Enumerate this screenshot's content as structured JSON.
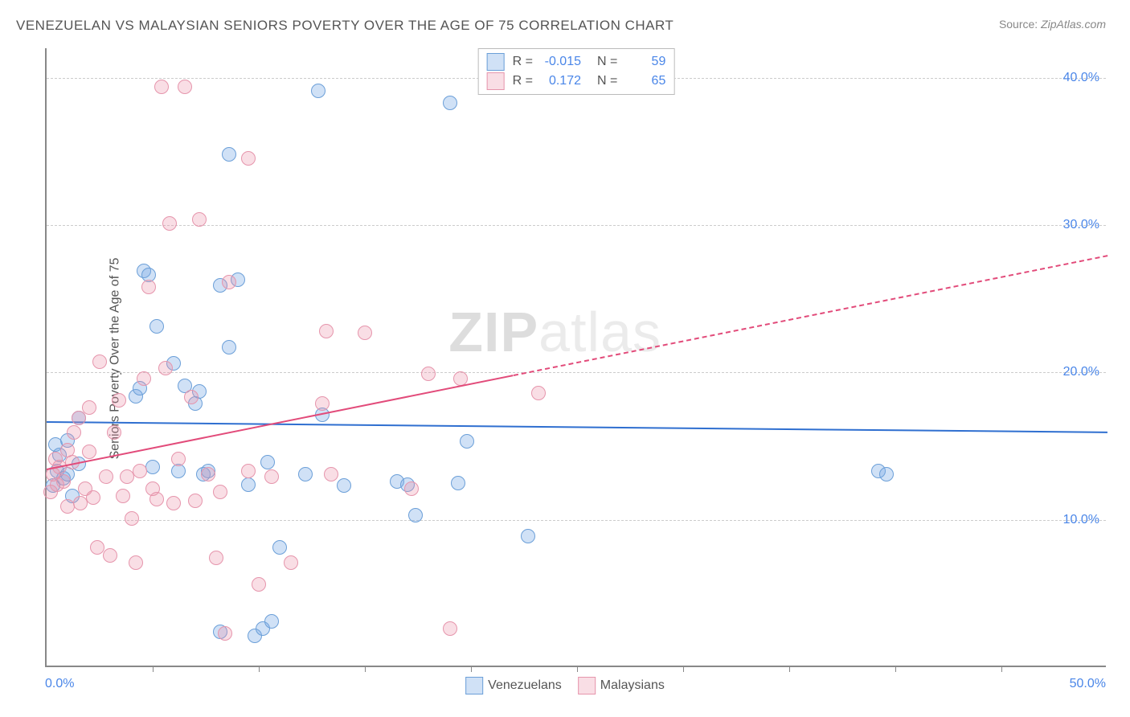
{
  "title": "VENEZUELAN VS MALAYSIAN SENIORS POVERTY OVER THE AGE OF 75 CORRELATION CHART",
  "source_label": "Source:",
  "source_value": "ZipAtlas.com",
  "ylabel": "Seniors Poverty Over the Age of 75",
  "watermark": "ZIPatlas",
  "chart": {
    "type": "scatter",
    "xlim": [
      0,
      50
    ],
    "ylim": [
      0,
      42
    ],
    "x_tick_step": 5,
    "x_min_label": "0.0%",
    "x_max_label": "50.0%",
    "y_gridlines": [
      {
        "value": 10,
        "label": "10.0%"
      },
      {
        "value": 20,
        "label": "20.0%"
      },
      {
        "value": 30,
        "label": "30.0%"
      },
      {
        "value": 40,
        "label": "40.0%"
      }
    ],
    "background_color": "#ffffff",
    "grid_color": "#cccccc",
    "axis_color": "#888888",
    "tick_label_color": "#4a86e8",
    "marker_radius": 9,
    "series": [
      {
        "key": "venezuelans",
        "label": "Venezuelans",
        "fill_color": "rgba(120,170,230,0.35)",
        "stroke_color": "#6b9fd8",
        "line_color": "#2f6fd0",
        "R": "-0.015",
        "N": "59",
        "trend": {
          "y_at_xmin": 16.7,
          "y_at_xmax": 16.0,
          "solid_until_x": 50
        },
        "points": [
          [
            0.3,
            12.2
          ],
          [
            0.4,
            15.0
          ],
          [
            0.5,
            13.2
          ],
          [
            0.6,
            14.3
          ],
          [
            0.8,
            12.7
          ],
          [
            1.0,
            15.3
          ],
          [
            1.0,
            13.0
          ],
          [
            1.2,
            11.5
          ],
          [
            1.5,
            16.8
          ],
          [
            1.5,
            13.7
          ],
          [
            4.2,
            18.3
          ],
          [
            4.4,
            18.8
          ],
          [
            4.6,
            26.8
          ],
          [
            4.8,
            26.5
          ],
          [
            5.0,
            13.5
          ],
          [
            5.2,
            23.0
          ],
          [
            6.0,
            20.5
          ],
          [
            6.2,
            13.2
          ],
          [
            6.5,
            19.0
          ],
          [
            7.0,
            17.8
          ],
          [
            7.2,
            18.6
          ],
          [
            7.4,
            13.0
          ],
          [
            7.6,
            13.2
          ],
          [
            8.2,
            25.8
          ],
          [
            8.2,
            2.3
          ],
          [
            8.6,
            21.6
          ],
          [
            8.6,
            34.7
          ],
          [
            9.0,
            26.2
          ],
          [
            9.5,
            12.3
          ],
          [
            9.8,
            2.0
          ],
          [
            10.2,
            2.5
          ],
          [
            10.4,
            13.8
          ],
          [
            10.6,
            3.0
          ],
          [
            11.0,
            8.0
          ],
          [
            12.2,
            13.0
          ],
          [
            12.8,
            39.0
          ],
          [
            13.0,
            17.0
          ],
          [
            14.0,
            12.2
          ],
          [
            16.5,
            12.5
          ],
          [
            17.0,
            12.3
          ],
          [
            17.4,
            10.2
          ],
          [
            19.0,
            38.2
          ],
          [
            19.4,
            12.4
          ],
          [
            19.8,
            15.2
          ],
          [
            22.7,
            8.8
          ],
          [
            39.2,
            13.2
          ],
          [
            39.6,
            13.0
          ]
        ]
      },
      {
        "key": "malaysians",
        "label": "Malaysians",
        "fill_color": "rgba(235,145,170,0.30)",
        "stroke_color": "#e695ac",
        "line_color": "#e24b7a",
        "R": "0.172",
        "N": "65",
        "trend": {
          "y_at_xmin": 13.5,
          "y_at_xmax": 28.0,
          "solid_until_x": 22
        },
        "points": [
          [
            0.2,
            11.8
          ],
          [
            0.3,
            13.0
          ],
          [
            0.4,
            14.0
          ],
          [
            0.5,
            12.3
          ],
          [
            0.6,
            13.5
          ],
          [
            0.8,
            12.5
          ],
          [
            1.0,
            10.8
          ],
          [
            1.0,
            14.6
          ],
          [
            1.2,
            13.8
          ],
          [
            1.3,
            15.8
          ],
          [
            1.5,
            16.8
          ],
          [
            1.6,
            11.0
          ],
          [
            1.8,
            12.0
          ],
          [
            2.0,
            17.5
          ],
          [
            2.0,
            14.5
          ],
          [
            2.2,
            11.4
          ],
          [
            2.4,
            8.0
          ],
          [
            2.5,
            20.6
          ],
          [
            2.8,
            12.8
          ],
          [
            3.0,
            7.5
          ],
          [
            3.2,
            15.8
          ],
          [
            3.4,
            18.0
          ],
          [
            3.6,
            11.5
          ],
          [
            3.8,
            12.8
          ],
          [
            4.0,
            10.0
          ],
          [
            4.2,
            7.0
          ],
          [
            4.4,
            13.2
          ],
          [
            4.6,
            19.5
          ],
          [
            4.8,
            25.7
          ],
          [
            5.0,
            12.0
          ],
          [
            5.2,
            11.3
          ],
          [
            5.4,
            39.3
          ],
          [
            5.6,
            20.2
          ],
          [
            5.8,
            30.0
          ],
          [
            6.0,
            11.0
          ],
          [
            6.2,
            14.0
          ],
          [
            6.5,
            39.3
          ],
          [
            6.8,
            18.2
          ],
          [
            7.0,
            11.2
          ],
          [
            7.2,
            30.3
          ],
          [
            7.6,
            13.0
          ],
          [
            8.0,
            7.3
          ],
          [
            8.2,
            11.8
          ],
          [
            8.4,
            2.2
          ],
          [
            8.6,
            26.0
          ],
          [
            9.5,
            34.4
          ],
          [
            9.5,
            13.2
          ],
          [
            10.0,
            5.5
          ],
          [
            10.6,
            12.8
          ],
          [
            11.5,
            7.0
          ],
          [
            13.0,
            17.8
          ],
          [
            13.2,
            22.7
          ],
          [
            13.4,
            13.0
          ],
          [
            15.0,
            22.6
          ],
          [
            17.2,
            12.0
          ],
          [
            18.0,
            19.8
          ],
          [
            19.0,
            2.5
          ],
          [
            19.5,
            19.5
          ],
          [
            23.2,
            18.5
          ]
        ]
      }
    ],
    "legend_stats_labels": {
      "R": "R =",
      "N": "N ="
    }
  }
}
